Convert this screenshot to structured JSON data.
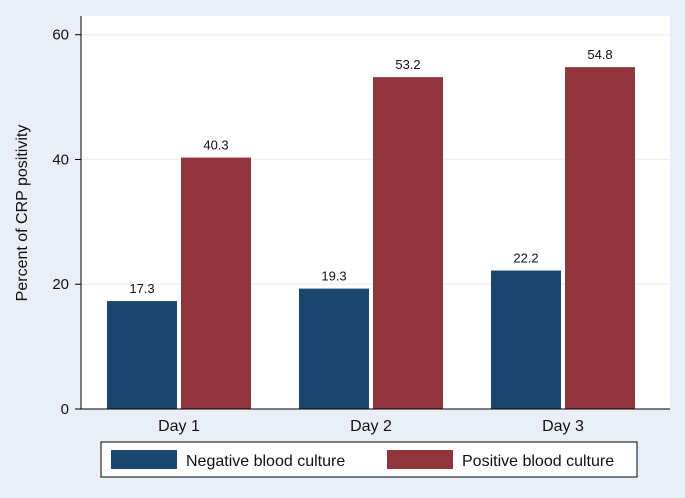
{
  "chart_data": {
    "type": "bar",
    "title": "",
    "xlabel": "",
    "ylabel": "Percent of CRP positivity",
    "categories": [
      "Day 1",
      "Day 2",
      "Day 3"
    ],
    "series": [
      {
        "name": "Negative blood culture",
        "values": [
          17.3,
          19.3,
          22.2
        ],
        "color": "#1a476f"
      },
      {
        "name": "Positive blood culture",
        "values": [
          40.3,
          53.2,
          54.8
        ],
        "color": "#90353b"
      }
    ],
    "data_labels": [
      [
        "17.3",
        "19.3",
        "22.2"
      ],
      [
        "40.3",
        "53.2",
        "54.8"
      ]
    ],
    "ylim": [
      0,
      63
    ],
    "yticks": [
      0,
      20,
      40,
      60
    ],
    "grid": true,
    "legend_position": "bottom"
  },
  "colors": {
    "outer_background": "#e9eff5",
    "plot_background": "#ffffff",
    "grid": "#eaf2f3"
  }
}
